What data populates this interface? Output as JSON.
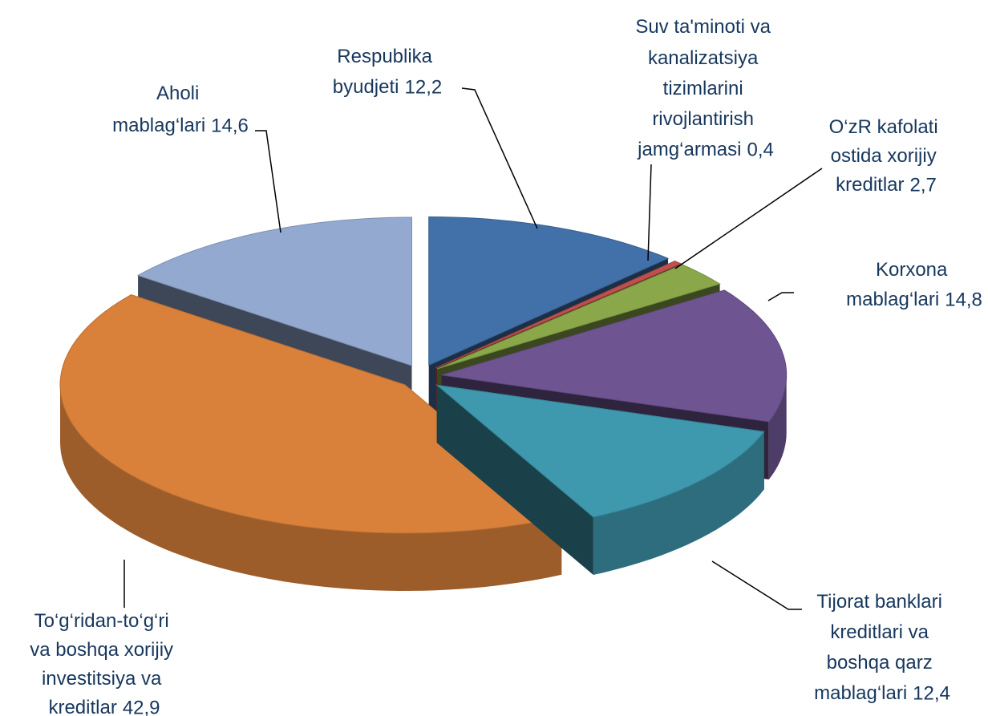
{
  "chart_data": {
    "type": "pie",
    "categories": [
      "Respublika byudjeti",
      "Suv ta'minoti va kanalizatsiya tizimlarini rivojlantirish jamg‘armasi",
      "O‘zR kafolati ostida xorijiy kreditlar",
      "Korxona mablag‘lari",
      "Tijorat banklari kreditlari va boshqa qarz mablag‘lari",
      "To‘g‘ridan-to‘g‘ri va boshqa xorijiy investitsiya va kreditlar",
      "Aholi mablag‘lari"
    ],
    "values": [
      12.2,
      0.4,
      2.7,
      14.8,
      12.4,
      42.9,
      14.6
    ],
    "value_labels": [
      "12,2",
      "0,4",
      "2,7",
      "14,8",
      "12,4",
      "42,9",
      "14,6"
    ],
    "colors": [
      "#4270a8",
      "#c0504d",
      "#8aa84a",
      "#6e5592",
      "#3e98ae",
      "#d9813b",
      "#93a9d0"
    ]
  }
}
